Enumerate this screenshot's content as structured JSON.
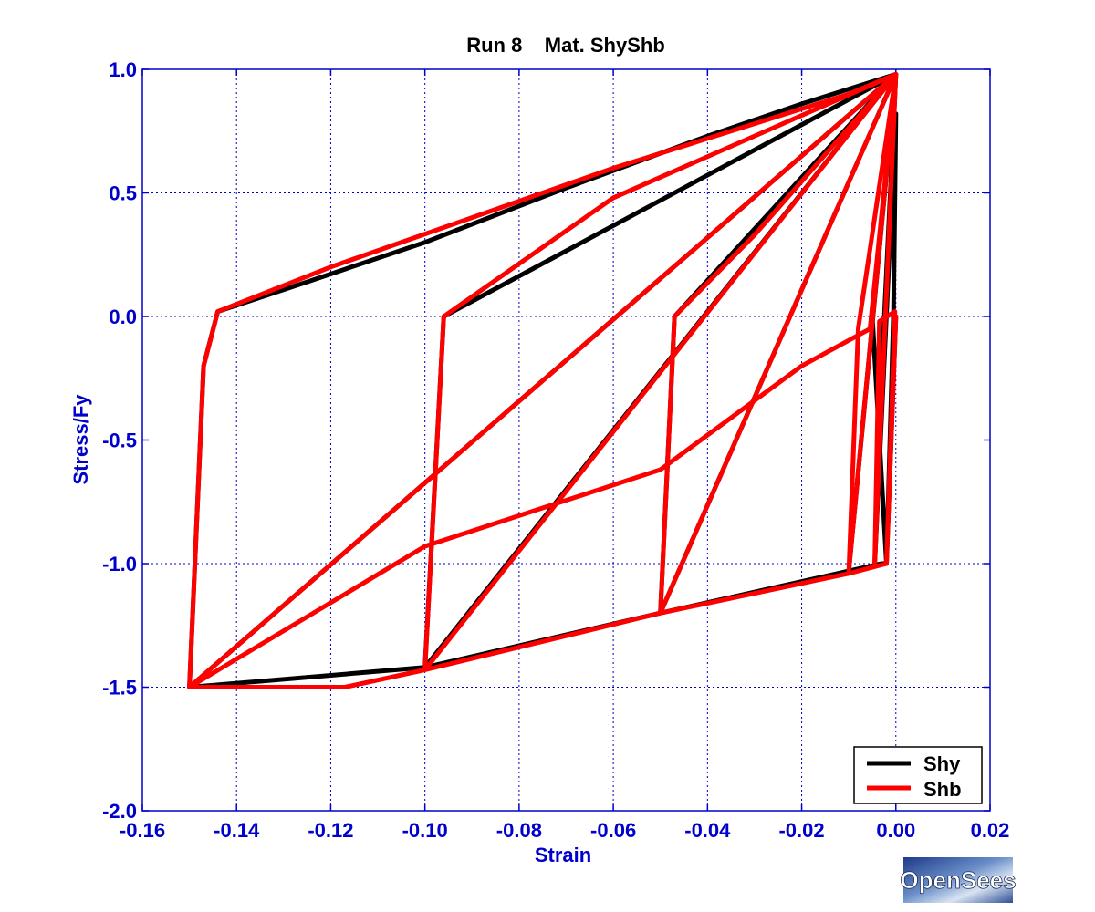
{
  "colors": {
    "axis": "#0000cc",
    "grid": "#0000cc",
    "shy": "#000000",
    "shb": "#ff0000",
    "title": "#000000"
  },
  "logo": {
    "text": "OpenSees"
  },
  "chart_data": {
    "type": "line",
    "title": "Run 8    Mat. ShyShb",
    "xlabel": "Strain",
    "ylabel": "Stress/Fy",
    "xlim": [
      -0.16,
      0.02
    ],
    "ylim": [
      -2.0,
      1.0
    ],
    "xticks": [
      -0.16,
      -0.14,
      -0.12,
      -0.1,
      -0.08,
      -0.06,
      -0.04,
      -0.02,
      0.0,
      0.02
    ],
    "xtick_labels": [
      "-0.16",
      "-0.14",
      "-0.12",
      "-0.10",
      "-0.08",
      "-0.06",
      "-0.04",
      "-0.02",
      "0.00",
      "0.02"
    ],
    "yticks": [
      1.0,
      0.5,
      0.0,
      -0.5,
      -1.0,
      -1.5,
      -2.0
    ],
    "ytick_labels": [
      "1.0",
      "0.5",
      "0.0",
      "-0.5",
      "-1.0",
      "-1.5",
      "-2.0"
    ],
    "grid": true,
    "legend_position": "bottom-right",
    "series": [
      {
        "name": "Shy",
        "color": "#000000",
        "x": [
          0.0,
          -0.002,
          -0.0005,
          0.0,
          -0.0045,
          -0.0025,
          -0.0008,
          0.0,
          -0.01,
          -0.005,
          0.0,
          -0.05,
          -0.047,
          0.0,
          -0.1,
          -0.096,
          0.0,
          -0.15,
          -0.147,
          -0.144,
          -0.125,
          -0.1,
          -0.07,
          -0.04,
          -0.02,
          0.0,
          -0.005,
          -0.002,
          -0.003,
          -0.05,
          -0.1,
          -0.15
        ],
        "y": [
          0.0,
          -1.0,
          0.02,
          0.82,
          -1.0,
          -0.02,
          0.65,
          0.98,
          -1.03,
          -0.03,
          0.98,
          -1.2,
          0.0,
          0.98,
          -1.42,
          0.0,
          0.98,
          -1.5,
          -0.2,
          0.02,
          0.14,
          0.3,
          0.52,
          0.73,
          0.86,
          0.98,
          0.0,
          -1.0,
          -1.0,
          -1.2,
          -1.42,
          -1.5
        ]
      },
      {
        "name": "Shb",
        "color": "#ff0000",
        "x": [
          0.0,
          -0.002,
          -0.0002,
          -0.0035,
          -0.0045,
          0.0,
          -0.01,
          -0.008,
          0.0,
          -0.05,
          -0.047,
          -0.03,
          0.0,
          -0.1,
          -0.096,
          -0.06,
          0.0,
          -0.15,
          -0.147,
          -0.144,
          -0.12,
          -0.09,
          -0.06,
          -0.03,
          -0.01,
          0.0,
          -0.0055,
          -0.02,
          -0.05,
          -0.1,
          -0.15,
          -0.117,
          -0.1,
          -0.05,
          -0.04,
          -0.01,
          -0.002
        ],
        "y": [
          0.0,
          -1.0,
          0.02,
          -0.02,
          -1.0,
          0.98,
          -1.03,
          -0.05,
          0.98,
          -1.2,
          0.0,
          0.33,
          0.98,
          -1.43,
          0.0,
          0.48,
          0.98,
          -1.5,
          -0.2,
          0.02,
          0.2,
          0.4,
          0.6,
          0.78,
          0.9,
          0.98,
          -0.05,
          -0.2,
          -0.62,
          -0.93,
          -1.5,
          -1.5,
          -1.43,
          -1.2,
          -1.16,
          -1.04,
          -1.0
        ]
      }
    ]
  }
}
